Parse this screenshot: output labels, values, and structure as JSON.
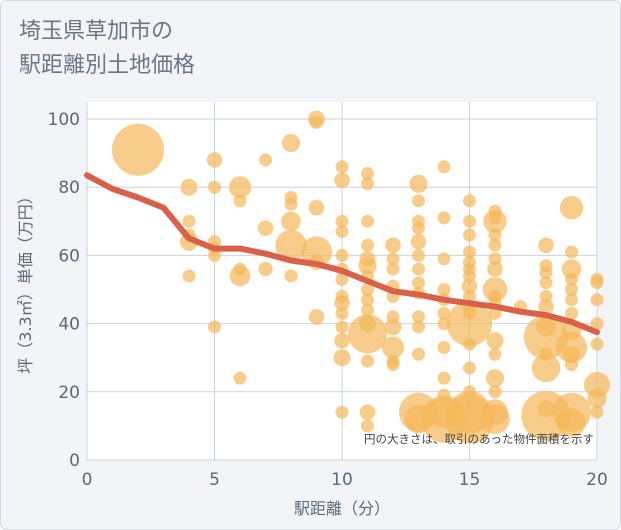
{
  "chart_data": {
    "type": "scatter",
    "title": "埼玉県草加市の\n駅距離別土地価格",
    "xlabel": "駅距離（分）",
    "ylabel": "坪（3.3㎡）単価（万円）",
    "xlim": [
      0,
      20
    ],
    "ylim": [
      0,
      105
    ],
    "xticks": [
      "0",
      "5",
      "10",
      "15",
      "20"
    ],
    "yticks": [
      "0",
      "20",
      "40",
      "60",
      "80",
      "100"
    ],
    "annotation": "円の大きさは、取引のあった物件面積を示す",
    "grid": true,
    "colors": {
      "points": "#f5b85a",
      "trend": "#d9614a",
      "plot_bg": "#ffffff",
      "grid": "#c9d3dc"
    },
    "scatter_points": [
      {
        "x": 2,
        "y": 91,
        "s": 4
      },
      {
        "x": 4,
        "y": 80,
        "s": 1.3
      },
      {
        "x": 4,
        "y": 70,
        "s": 1
      },
      {
        "x": 4,
        "y": 66,
        "s": 1
      },
      {
        "x": 4,
        "y": 64,
        "s": 1.4
      },
      {
        "x": 4,
        "y": 54,
        "s": 1
      },
      {
        "x": 5,
        "y": 88,
        "s": 1.2
      },
      {
        "x": 5,
        "y": 80,
        "s": 1
      },
      {
        "x": 5,
        "y": 64,
        "s": 1
      },
      {
        "x": 5,
        "y": 62,
        "s": 1
      },
      {
        "x": 5,
        "y": 60,
        "s": 1
      },
      {
        "x": 5,
        "y": 39,
        "s": 1
      },
      {
        "x": 6,
        "y": 80,
        "s": 1.7
      },
      {
        "x": 6,
        "y": 76,
        "s": 1
      },
      {
        "x": 6,
        "y": 56,
        "s": 1
      },
      {
        "x": 6,
        "y": 54,
        "s": 1.6
      },
      {
        "x": 6,
        "y": 24,
        "s": 1
      },
      {
        "x": 7,
        "y": 88,
        "s": 1
      },
      {
        "x": 7,
        "y": 68,
        "s": 1.2
      },
      {
        "x": 7,
        "y": 56,
        "s": 1.1
      },
      {
        "x": 8,
        "y": 93,
        "s": 1.4
      },
      {
        "x": 8,
        "y": 77,
        "s": 1
      },
      {
        "x": 8,
        "y": 75,
        "s": 1
      },
      {
        "x": 8,
        "y": 70,
        "s": 1.5
      },
      {
        "x": 8,
        "y": 63,
        "s": 2.4
      },
      {
        "x": 8,
        "y": 54,
        "s": 1
      },
      {
        "x": 9,
        "y": 100,
        "s": 1.3
      },
      {
        "x": 9,
        "y": 99,
        "s": 1
      },
      {
        "x": 9,
        "y": 74,
        "s": 1.2
      },
      {
        "x": 9,
        "y": 61,
        "s": 2.4
      },
      {
        "x": 9,
        "y": 58,
        "s": 1.2
      },
      {
        "x": 9,
        "y": 42,
        "s": 1.2
      },
      {
        "x": 10,
        "y": 86,
        "s": 1
      },
      {
        "x": 10,
        "y": 82,
        "s": 1.2
      },
      {
        "x": 10,
        "y": 70,
        "s": 1
      },
      {
        "x": 10,
        "y": 67,
        "s": 1
      },
      {
        "x": 10,
        "y": 60,
        "s": 1
      },
      {
        "x": 10,
        "y": 56,
        "s": 1
      },
      {
        "x": 10,
        "y": 53,
        "s": 1
      },
      {
        "x": 10,
        "y": 48,
        "s": 1
      },
      {
        "x": 10,
        "y": 46,
        "s": 1.2
      },
      {
        "x": 10,
        "y": 43,
        "s": 1
      },
      {
        "x": 10,
        "y": 39,
        "s": 1
      },
      {
        "x": 10,
        "y": 35,
        "s": 1.2
      },
      {
        "x": 10,
        "y": 30,
        "s": 1.3
      },
      {
        "x": 10,
        "y": 14,
        "s": 1
      },
      {
        "x": 11,
        "y": 84,
        "s": 1
      },
      {
        "x": 11,
        "y": 81,
        "s": 1
      },
      {
        "x": 11,
        "y": 70,
        "s": 1
      },
      {
        "x": 11,
        "y": 63,
        "s": 1
      },
      {
        "x": 11,
        "y": 59,
        "s": 1.2
      },
      {
        "x": 11,
        "y": 57,
        "s": 1.4
      },
      {
        "x": 11,
        "y": 54,
        "s": 1
      },
      {
        "x": 11,
        "y": 50,
        "s": 1
      },
      {
        "x": 11,
        "y": 47,
        "s": 1
      },
      {
        "x": 11,
        "y": 44,
        "s": 1
      },
      {
        "x": 11,
        "y": 40,
        "s": 1.3
      },
      {
        "x": 11,
        "y": 37,
        "s": 3
      },
      {
        "x": 11,
        "y": 29,
        "s": 1
      },
      {
        "x": 11,
        "y": 14,
        "s": 1.2
      },
      {
        "x": 11,
        "y": 10,
        "s": 1
      },
      {
        "x": 12,
        "y": 63,
        "s": 1.2
      },
      {
        "x": 12,
        "y": 59,
        "s": 1
      },
      {
        "x": 12,
        "y": 56,
        "s": 1
      },
      {
        "x": 12,
        "y": 51,
        "s": 1
      },
      {
        "x": 12,
        "y": 48,
        "s": 1
      },
      {
        "x": 12,
        "y": 42,
        "s": 1
      },
      {
        "x": 12,
        "y": 39,
        "s": 1.3
      },
      {
        "x": 12,
        "y": 33,
        "s": 1.7
      },
      {
        "x": 12,
        "y": 29,
        "s": 1
      },
      {
        "x": 12,
        "y": 28,
        "s": 1
      },
      {
        "x": 13,
        "y": 81,
        "s": 1.4
      },
      {
        "x": 13,
        "y": 76,
        "s": 1
      },
      {
        "x": 13,
        "y": 70,
        "s": 1
      },
      {
        "x": 13,
        "y": 68,
        "s": 1
      },
      {
        "x": 13,
        "y": 64,
        "s": 1.2
      },
      {
        "x": 13,
        "y": 60,
        "s": 1
      },
      {
        "x": 13,
        "y": 56,
        "s": 1
      },
      {
        "x": 13,
        "y": 52,
        "s": 1
      },
      {
        "x": 13,
        "y": 49,
        "s": 1
      },
      {
        "x": 13,
        "y": 42,
        "s": 1
      },
      {
        "x": 13,
        "y": 39,
        "s": 1
      },
      {
        "x": 13,
        "y": 31,
        "s": 1
      },
      {
        "x": 13,
        "y": 14,
        "s": 3
      },
      {
        "x": 13,
        "y": 12,
        "s": 2.2
      },
      {
        "x": 14,
        "y": 86,
        "s": 1
      },
      {
        "x": 14,
        "y": 71,
        "s": 1
      },
      {
        "x": 14,
        "y": 59,
        "s": 1
      },
      {
        "x": 14,
        "y": 50,
        "s": 1
      },
      {
        "x": 14,
        "y": 47,
        "s": 1
      },
      {
        "x": 14,
        "y": 43,
        "s": 1
      },
      {
        "x": 14,
        "y": 40,
        "s": 1
      },
      {
        "x": 14,
        "y": 33,
        "s": 1
      },
      {
        "x": 14,
        "y": 24,
        "s": 1
      },
      {
        "x": 14,
        "y": 19,
        "s": 1
      },
      {
        "x": 14,
        "y": 14,
        "s": 2.4
      },
      {
        "x": 14,
        "y": 12,
        "s": 3.6
      },
      {
        "x": 15,
        "y": 76,
        "s": 1
      },
      {
        "x": 15,
        "y": 70,
        "s": 1
      },
      {
        "x": 15,
        "y": 66,
        "s": 1
      },
      {
        "x": 15,
        "y": 61,
        "s": 1
      },
      {
        "x": 15,
        "y": 58,
        "s": 1
      },
      {
        "x": 15,
        "y": 56,
        "s": 1
      },
      {
        "x": 15,
        "y": 54,
        "s": 1
      },
      {
        "x": 15,
        "y": 51,
        "s": 1.2
      },
      {
        "x": 15,
        "y": 48,
        "s": 1
      },
      {
        "x": 15,
        "y": 45,
        "s": 1
      },
      {
        "x": 15,
        "y": 43,
        "s": 1
      },
      {
        "x": 15,
        "y": 40,
        "s": 3.5
      },
      {
        "x": 15,
        "y": 34,
        "s": 1
      },
      {
        "x": 15,
        "y": 27,
        "s": 1
      },
      {
        "x": 15,
        "y": 20,
        "s": 1
      },
      {
        "x": 15,
        "y": 14,
        "s": 3.3
      },
      {
        "x": 15,
        "y": 12,
        "s": 3.8
      },
      {
        "x": 16,
        "y": 73,
        "s": 1
      },
      {
        "x": 16,
        "y": 71,
        "s": 1
      },
      {
        "x": 16,
        "y": 70,
        "s": 1.8
      },
      {
        "x": 16,
        "y": 66,
        "s": 1
      },
      {
        "x": 16,
        "y": 63,
        "s": 1
      },
      {
        "x": 16,
        "y": 59,
        "s": 1
      },
      {
        "x": 16,
        "y": 56,
        "s": 1.2
      },
      {
        "x": 16,
        "y": 50,
        "s": 1.9
      },
      {
        "x": 16,
        "y": 48,
        "s": 1
      },
      {
        "x": 16,
        "y": 46,
        "s": 1
      },
      {
        "x": 16,
        "y": 43,
        "s": 1
      },
      {
        "x": 16,
        "y": 35,
        "s": 1.3
      },
      {
        "x": 16,
        "y": 31,
        "s": 1
      },
      {
        "x": 16,
        "y": 24,
        "s": 1.4
      },
      {
        "x": 16,
        "y": 20,
        "s": 1
      },
      {
        "x": 16,
        "y": 14,
        "s": 2
      },
      {
        "x": 16,
        "y": 12,
        "s": 2.3
      },
      {
        "x": 17,
        "y": 45,
        "s": 1
      },
      {
        "x": 18,
        "y": 63,
        "s": 1.2
      },
      {
        "x": 18,
        "y": 57,
        "s": 1
      },
      {
        "x": 18,
        "y": 55,
        "s": 1
      },
      {
        "x": 18,
        "y": 52,
        "s": 1
      },
      {
        "x": 18,
        "y": 48,
        "s": 1
      },
      {
        "x": 18,
        "y": 45,
        "s": 1.2
      },
      {
        "x": 18,
        "y": 39,
        "s": 1.5
      },
      {
        "x": 18,
        "y": 36,
        "s": 3.4
      },
      {
        "x": 18,
        "y": 31,
        "s": 1
      },
      {
        "x": 18,
        "y": 27,
        "s": 2.2
      },
      {
        "x": 18,
        "y": 15,
        "s": 1.3
      },
      {
        "x": 18,
        "y": 13,
        "s": 3.8
      },
      {
        "x": 19,
        "y": 74,
        "s": 1.8
      },
      {
        "x": 19,
        "y": 61,
        "s": 1
      },
      {
        "x": 19,
        "y": 56,
        "s": 1.5
      },
      {
        "x": 19,
        "y": 53,
        "s": 1
      },
      {
        "x": 19,
        "y": 50,
        "s": 1
      },
      {
        "x": 19,
        "y": 47,
        "s": 1
      },
      {
        "x": 19,
        "y": 43,
        "s": 1
      },
      {
        "x": 19,
        "y": 38,
        "s": 1.5
      },
      {
        "x": 19,
        "y": 33,
        "s": 2.4
      },
      {
        "x": 19,
        "y": 31,
        "s": 1.3
      },
      {
        "x": 19,
        "y": 28,
        "s": 1
      },
      {
        "x": 19,
        "y": 14,
        "s": 3
      },
      {
        "x": 19,
        "y": 11,
        "s": 2.2
      },
      {
        "x": 20,
        "y": 53,
        "s": 1
      },
      {
        "x": 20,
        "y": 52,
        "s": 1
      },
      {
        "x": 20,
        "y": 47,
        "s": 1
      },
      {
        "x": 20,
        "y": 40,
        "s": 1
      },
      {
        "x": 20,
        "y": 34,
        "s": 1
      },
      {
        "x": 20,
        "y": 22,
        "s": 2
      },
      {
        "x": 20,
        "y": 18,
        "s": 1.5
      },
      {
        "x": 20,
        "y": 14,
        "s": 1
      }
    ],
    "trend_line": {
      "x": [
        0,
        1,
        2,
        3,
        4,
        5,
        6,
        7,
        8,
        9,
        10,
        11,
        12,
        13,
        14,
        15,
        16,
        17,
        18,
        19,
        20
      ],
      "y": [
        83.5,
        79.5,
        77,
        74,
        65,
        62,
        62,
        60.5,
        58.5,
        57.5,
        55.5,
        52.5,
        49.5,
        48.5,
        47,
        46,
        45,
        43.5,
        42.5,
        40.5,
        37.5
      ]
    }
  }
}
